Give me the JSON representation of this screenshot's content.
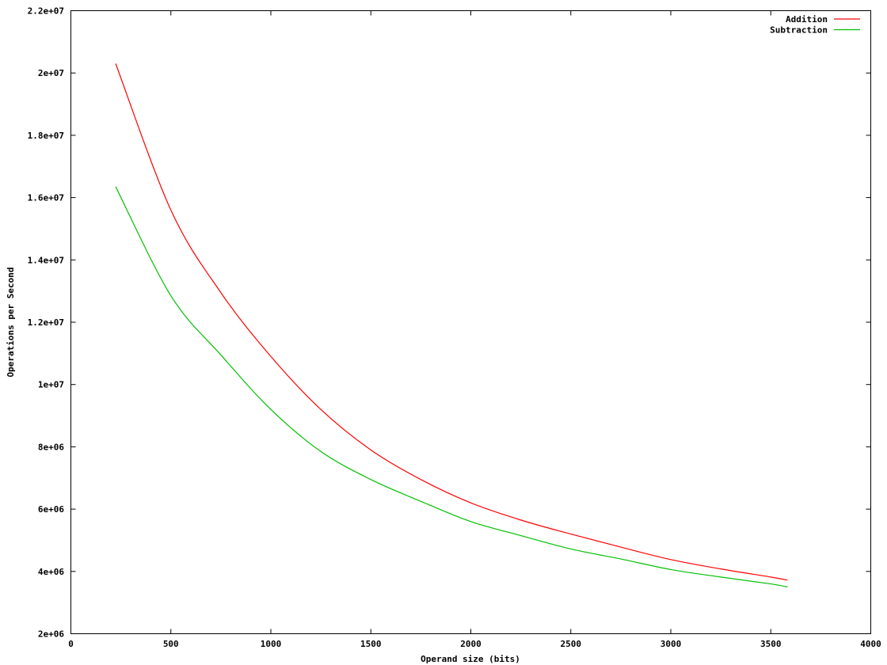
{
  "chart_data": {
    "type": "line",
    "title": "",
    "xlabel": "Operand size (bits)",
    "ylabel": "Operations per Second",
    "xlim": [
      0,
      4000
    ],
    "ylim": [
      2000000,
      22000000
    ],
    "x_ticks": [
      "0",
      "500",
      "1000",
      "1500",
      "2000",
      "2500",
      "3000",
      "3500",
      "4000"
    ],
    "y_ticks": [
      "2e+06",
      "4e+06",
      "6e+06",
      "8e+06",
      "1e+07",
      "1.2e+07",
      "1.4e+07",
      "1.6e+07",
      "1.8e+07",
      "2e+07",
      "2.2e+07"
    ],
    "grid": false,
    "legend_position": "top-right",
    "x": [
      224,
      500,
      750,
      1000,
      1250,
      1500,
      1750,
      2000,
      2250,
      2500,
      2750,
      3000,
      3250,
      3500,
      3584
    ],
    "series": [
      {
        "name": "Addition",
        "color": "#ff0000",
        "values": [
          20300000,
          15600000,
          12950000,
          10900000,
          9200000,
          7900000,
          6950000,
          6200000,
          5650000,
          5200000,
          4780000,
          4380000,
          4080000,
          3820000,
          3720000
        ]
      },
      {
        "name": "Subtraction",
        "color": "#00c000",
        "values": [
          16350000,
          12850000,
          10950000,
          9200000,
          7850000,
          6950000,
          6250000,
          5600000,
          5150000,
          4720000,
          4400000,
          4060000,
          3820000,
          3600000,
          3500000
        ]
      }
    ]
  }
}
